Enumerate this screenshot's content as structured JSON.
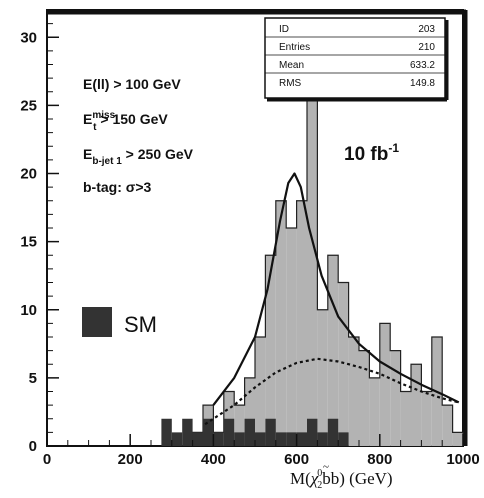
{
  "chart_data": {
    "type": "bar",
    "xlabel_parts": [
      "M(",
      "χ",
      "~",
      "0",
      "2",
      "bb)  (GeV)"
    ],
    "xlim": [
      0,
      1000
    ],
    "ylim": [
      0,
      32
    ],
    "xticks": [
      0,
      200,
      400,
      600,
      800,
      1000
    ],
    "yticks": [
      0,
      5,
      10,
      15,
      20,
      25,
      30
    ],
    "bin_width": 25,
    "signal_bins": [
      [
        350,
        1
      ],
      [
        375,
        3
      ],
      [
        400,
        1
      ],
      [
        425,
        4
      ],
      [
        450,
        3
      ],
      [
        475,
        5
      ],
      [
        500,
        8
      ],
      [
        525,
        14
      ],
      [
        550,
        18
      ],
      [
        575,
        16
      ],
      [
        600,
        18
      ],
      [
        625,
        30
      ],
      [
        650,
        10
      ],
      [
        675,
        14
      ],
      [
        700,
        12
      ],
      [
        725,
        8
      ],
      [
        750,
        7
      ],
      [
        775,
        5
      ],
      [
        800,
        9
      ],
      [
        825,
        7
      ],
      [
        850,
        4
      ],
      [
        875,
        6
      ],
      [
        900,
        4
      ],
      [
        925,
        8
      ],
      [
        950,
        3
      ],
      [
        975,
        1
      ]
    ],
    "sm_bins": [
      [
        275,
        2
      ],
      [
        300,
        1
      ],
      [
        325,
        2
      ],
      [
        350,
        1
      ],
      [
        375,
        2
      ],
      [
        400,
        1
      ],
      [
        425,
        2
      ],
      [
        450,
        1
      ],
      [
        475,
        2
      ],
      [
        500,
        1
      ],
      [
        525,
        2
      ],
      [
        550,
        1
      ],
      [
        575,
        1
      ],
      [
        600,
        1
      ],
      [
        625,
        2
      ],
      [
        650,
        1
      ],
      [
        675,
        2
      ],
      [
        700,
        1
      ]
    ],
    "fit_peak": [
      [
        400,
        3
      ],
      [
        450,
        5
      ],
      [
        500,
        8
      ],
      [
        530,
        11.5
      ],
      [
        560,
        16.5
      ],
      [
        580,
        19.3
      ],
      [
        595,
        20
      ],
      [
        610,
        19
      ],
      [
        630,
        16
      ],
      [
        660,
        12.5
      ],
      [
        700,
        9.5
      ],
      [
        750,
        7.5
      ],
      [
        800,
        6.2
      ],
      [
        850,
        5.3
      ],
      [
        900,
        4.5
      ],
      [
        950,
        3.8
      ],
      [
        990,
        3.2
      ]
    ],
    "fit_background": [
      [
        380,
        1.6
      ],
      [
        450,
        3
      ],
      [
        500,
        4.3
      ],
      [
        550,
        5.4
      ],
      [
        600,
        6.1
      ],
      [
        650,
        6.4
      ],
      [
        700,
        6.2
      ],
      [
        750,
        5.8
      ],
      [
        800,
        5.3
      ],
      [
        850,
        4.6
      ],
      [
        900,
        4
      ],
      [
        950,
        3.5
      ],
      [
        990,
        3.2
      ]
    ],
    "cuts": [
      {
        "main": "E(ll) > 100 GeV"
      },
      {
        "main": "E",
        "sub": "t",
        "sup": "miss",
        "rest": " > 150 GeV"
      },
      {
        "main": "E",
        "sub": "b-jet 1",
        "rest": " > 250 GeV"
      },
      {
        "main": "b-tag: σ>3"
      }
    ],
    "luminosity": {
      "main": "10 fb",
      "sup": "-1"
    },
    "legend": [
      {
        "label": "SM",
        "color": "#333333"
      }
    ],
    "stats_box": [
      {
        "label": "ID",
        "value": "203"
      },
      {
        "label": "Entries",
        "value": "210"
      },
      {
        "label": "Mean",
        "value": "633.2"
      },
      {
        "label": "RMS",
        "value": "149.8"
      }
    ],
    "colors": {
      "signal": "#b3b3b3",
      "sm": "#333333",
      "line": "#111111"
    }
  }
}
